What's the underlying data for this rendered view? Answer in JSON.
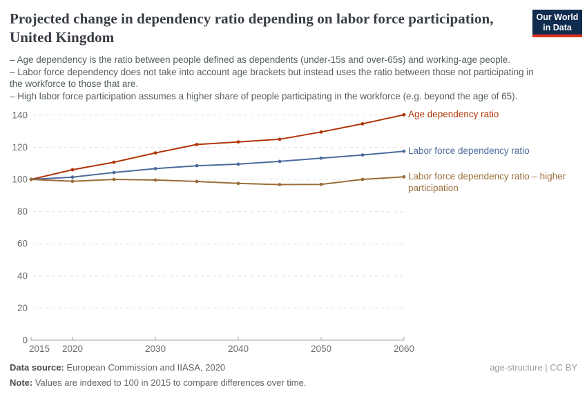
{
  "header": {
    "title": "Projected change in dependency ratio depending on labor force participation, United Kingdom",
    "logo": {
      "line1": "Our World",
      "line2": "in Data",
      "bg_color": "#102d50",
      "bar_color": "#e0311f"
    }
  },
  "subtitle": {
    "bullets": [
      "– Age dependency is the ratio between people defined as dependents (under-15s and over-65s) and working-age people.",
      "– Labor force dependency does not take into account age brackets but instead uses the ratio between those not participating in the workforce to those that are.",
      "– High labor force participation assumes a higher share of people participating in the workforce (e.g. beyond the age of 65)."
    ]
  },
  "chart_data": {
    "type": "line",
    "title": "Projected change in dependency ratio depending on labor force participation, United Kingdom",
    "x": [
      2015,
      2020,
      2025,
      2030,
      2035,
      2040,
      2045,
      2050,
      2055,
      2060
    ],
    "x_ticks": [
      2015,
      2020,
      2030,
      2040,
      2050,
      2060
    ],
    "y_ticks": [
      0,
      20,
      40,
      60,
      80,
      100,
      120,
      140
    ],
    "xlim": [
      2015,
      2060
    ],
    "ylim": [
      0,
      140
    ],
    "grid": "horizontal dashed",
    "legend_position": "right of line ends",
    "axis_color": "#a0a0a0",
    "grid_color": "#e0e0e0",
    "series": [
      {
        "name": "Age dependency ratio",
        "color": "#b13507",
        "values": [
          100,
          106,
          110.7,
          116.5,
          121.7,
          123.3,
          125,
          129.5,
          134.6,
          140.2
        ]
      },
      {
        "name": "Labor force dependency ratio",
        "color": "#4c6a9c",
        "values": [
          100,
          101.4,
          104.3,
          106.7,
          108.5,
          109.5,
          111.2,
          113.2,
          115.2,
          117.5
        ]
      },
      {
        "name": "Labor force dependency ratio – higher participation",
        "color": "#996d39",
        "values": [
          100,
          98.8,
          100,
          99.6,
          98.7,
          97.5,
          96.8,
          96.9,
          100,
          101.6
        ]
      }
    ]
  },
  "footer": {
    "datasource_label": "Data source:",
    "datasource_text": " European Commission and IIASA, 2020",
    "note_label": "Note:",
    "note_text": " Values are indexed to 100 in 2015 to compare differences over time.",
    "license": "age-structure | CC BY"
  }
}
